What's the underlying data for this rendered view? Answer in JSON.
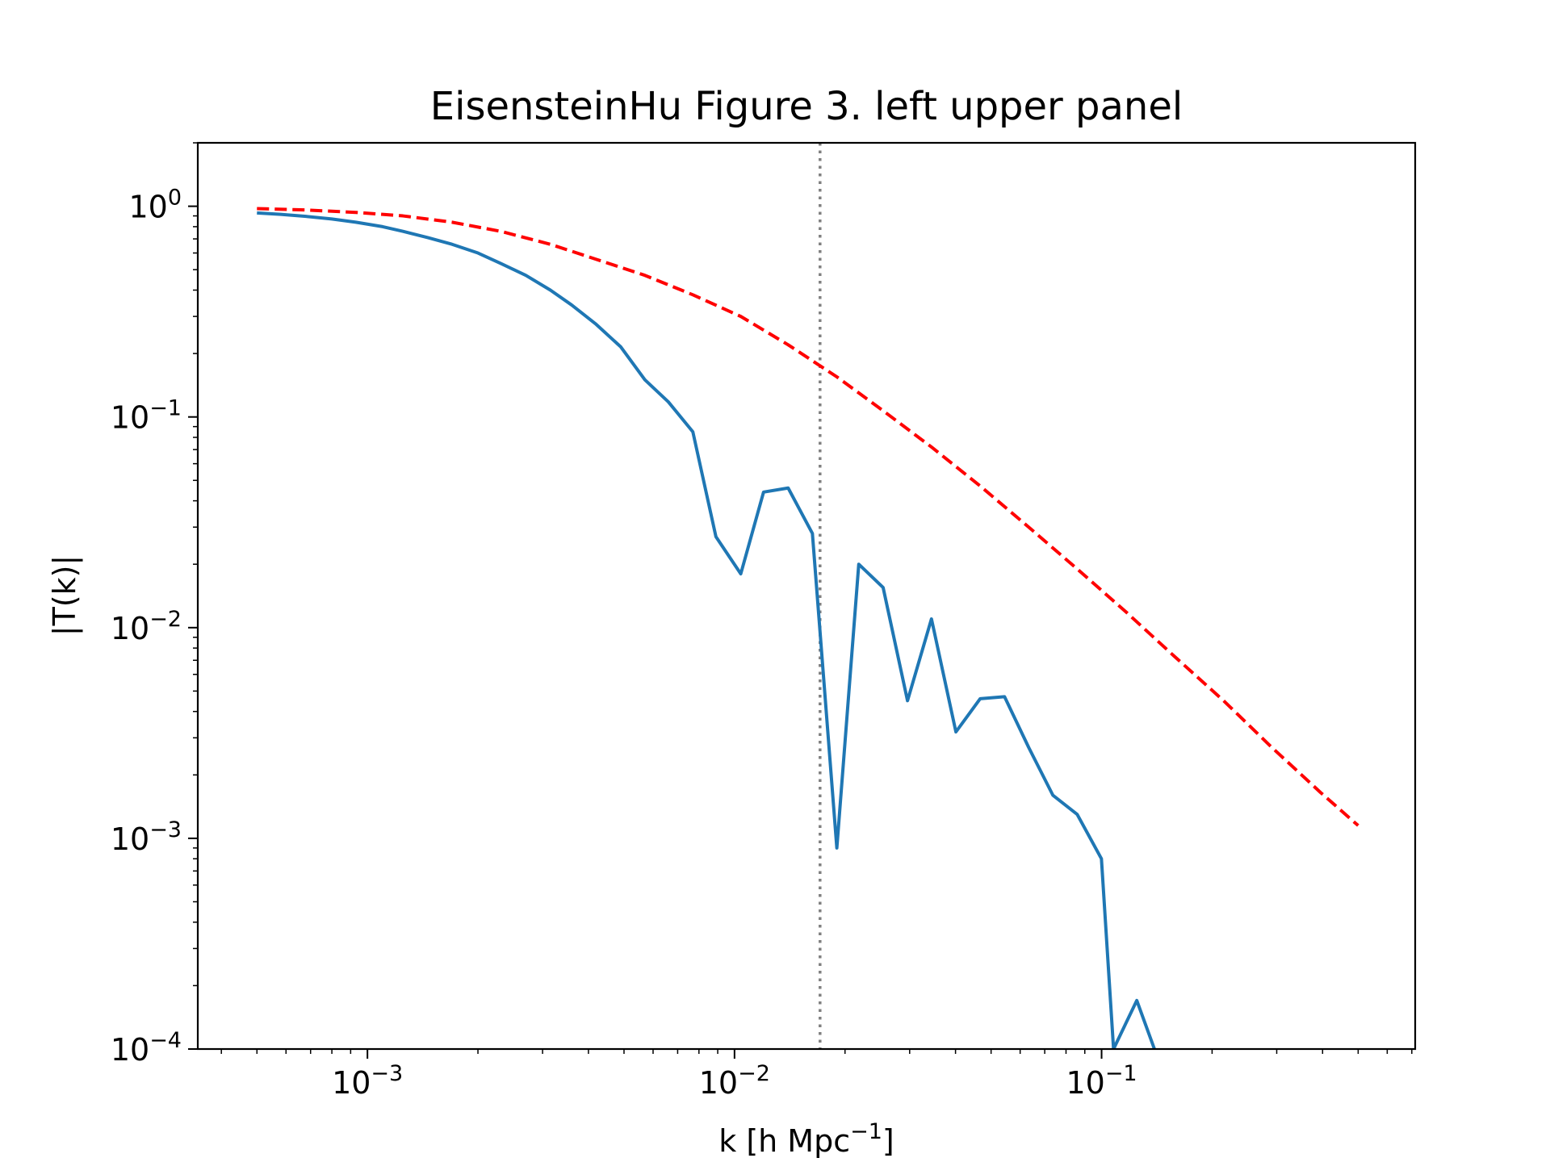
{
  "chart_data": {
    "type": "line",
    "title": "EisensteinHu Figure 3. left upper panel",
    "xlabel": {
      "base": "k [h Mpc",
      "sup": "−1",
      "end": "]"
    },
    "ylabel": "|T(k)|",
    "xscale": "log",
    "yscale": "log",
    "xlim": [
      0.000345,
      0.715
    ],
    "ylim": [
      0.0001,
      2.0
    ],
    "grid": false,
    "x_ticks": [
      {
        "value": 0.001,
        "base": "10",
        "exp": "−3"
      },
      {
        "value": 0.01,
        "base": "10",
        "exp": "−2"
      },
      {
        "value": 0.1,
        "base": "10",
        "exp": "−1"
      }
    ],
    "y_ticks": [
      {
        "value": 1,
        "base": "10",
        "exp": "0"
      },
      {
        "value": 0.1,
        "base": "10",
        "exp": "−1"
      },
      {
        "value": 0.01,
        "base": "10",
        "exp": "−2"
      },
      {
        "value": 0.001,
        "base": "10",
        "exp": "−3"
      },
      {
        "value": 0.0001,
        "base": "10",
        "exp": "−4"
      }
    ],
    "vline": {
      "x": 0.0171,
      "color": "#808080",
      "style": "dotted"
    },
    "series": [
      {
        "color": "#1f77b4",
        "style": "solid",
        "points": [
          [
            0.0005,
            0.93
          ],
          [
            0.00058,
            0.915
          ],
          [
            0.00068,
            0.895
          ],
          [
            0.0008,
            0.87
          ],
          [
            0.00093,
            0.84
          ],
          [
            0.0011,
            0.8
          ],
          [
            0.00125,
            0.76
          ],
          [
            0.00146,
            0.71
          ],
          [
            0.0017,
            0.66
          ],
          [
            0.002,
            0.6
          ],
          [
            0.00231,
            0.535
          ],
          [
            0.0027,
            0.47
          ],
          [
            0.00315,
            0.4
          ],
          [
            0.0036,
            0.34
          ],
          [
            0.0042,
            0.275
          ],
          [
            0.0049,
            0.215
          ],
          [
            0.0057,
            0.15
          ],
          [
            0.0066,
            0.118
          ],
          [
            0.0077,
            0.085
          ],
          [
            0.0089,
            0.027
          ],
          [
            0.0104,
            0.018
          ],
          [
            0.012,
            0.044
          ],
          [
            0.014,
            0.046
          ],
          [
            0.0163,
            0.028
          ],
          [
            0.019,
            0.0009
          ],
          [
            0.0218,
            0.02
          ],
          [
            0.0254,
            0.0155
          ],
          [
            0.0296,
            0.0045
          ],
          [
            0.0344,
            0.011
          ],
          [
            0.0401,
            0.0032
          ],
          [
            0.0467,
            0.0046
          ],
          [
            0.0544,
            0.0047
          ],
          [
            0.0633,
            0.0027
          ],
          [
            0.0737,
            0.0016
          ],
          [
            0.0858,
            0.0013
          ],
          [
            0.0999,
            0.0008
          ],
          [
            0.1078,
            0.0001
          ],
          [
            0.1247,
            0.00017
          ],
          [
            0.1393,
            0.0001
          ]
        ]
      },
      {
        "color": "#ff0000",
        "style": "dashed",
        "points": [
          [
            0.0005,
            0.975
          ],
          [
            0.00068,
            0.96
          ],
          [
            0.00093,
            0.935
          ],
          [
            0.00125,
            0.9
          ],
          [
            0.0017,
            0.84
          ],
          [
            0.00231,
            0.76
          ],
          [
            0.00315,
            0.66
          ],
          [
            0.0042,
            0.56
          ],
          [
            0.0057,
            0.47
          ],
          [
            0.0077,
            0.38
          ],
          [
            0.0104,
            0.3
          ],
          [
            0.014,
            0.22
          ],
          [
            0.019,
            0.155
          ],
          [
            0.0254,
            0.107
          ],
          [
            0.0344,
            0.072
          ],
          [
            0.0467,
            0.047
          ],
          [
            0.0633,
            0.03
          ],
          [
            0.0858,
            0.019
          ],
          [
            0.117,
            0.0118
          ],
          [
            0.158,
            0.0073
          ],
          [
            0.215,
            0.0045
          ],
          [
            0.291,
            0.0027
          ],
          [
            0.395,
            0.00165
          ],
          [
            0.5,
            0.00115
          ]
        ]
      }
    ]
  }
}
